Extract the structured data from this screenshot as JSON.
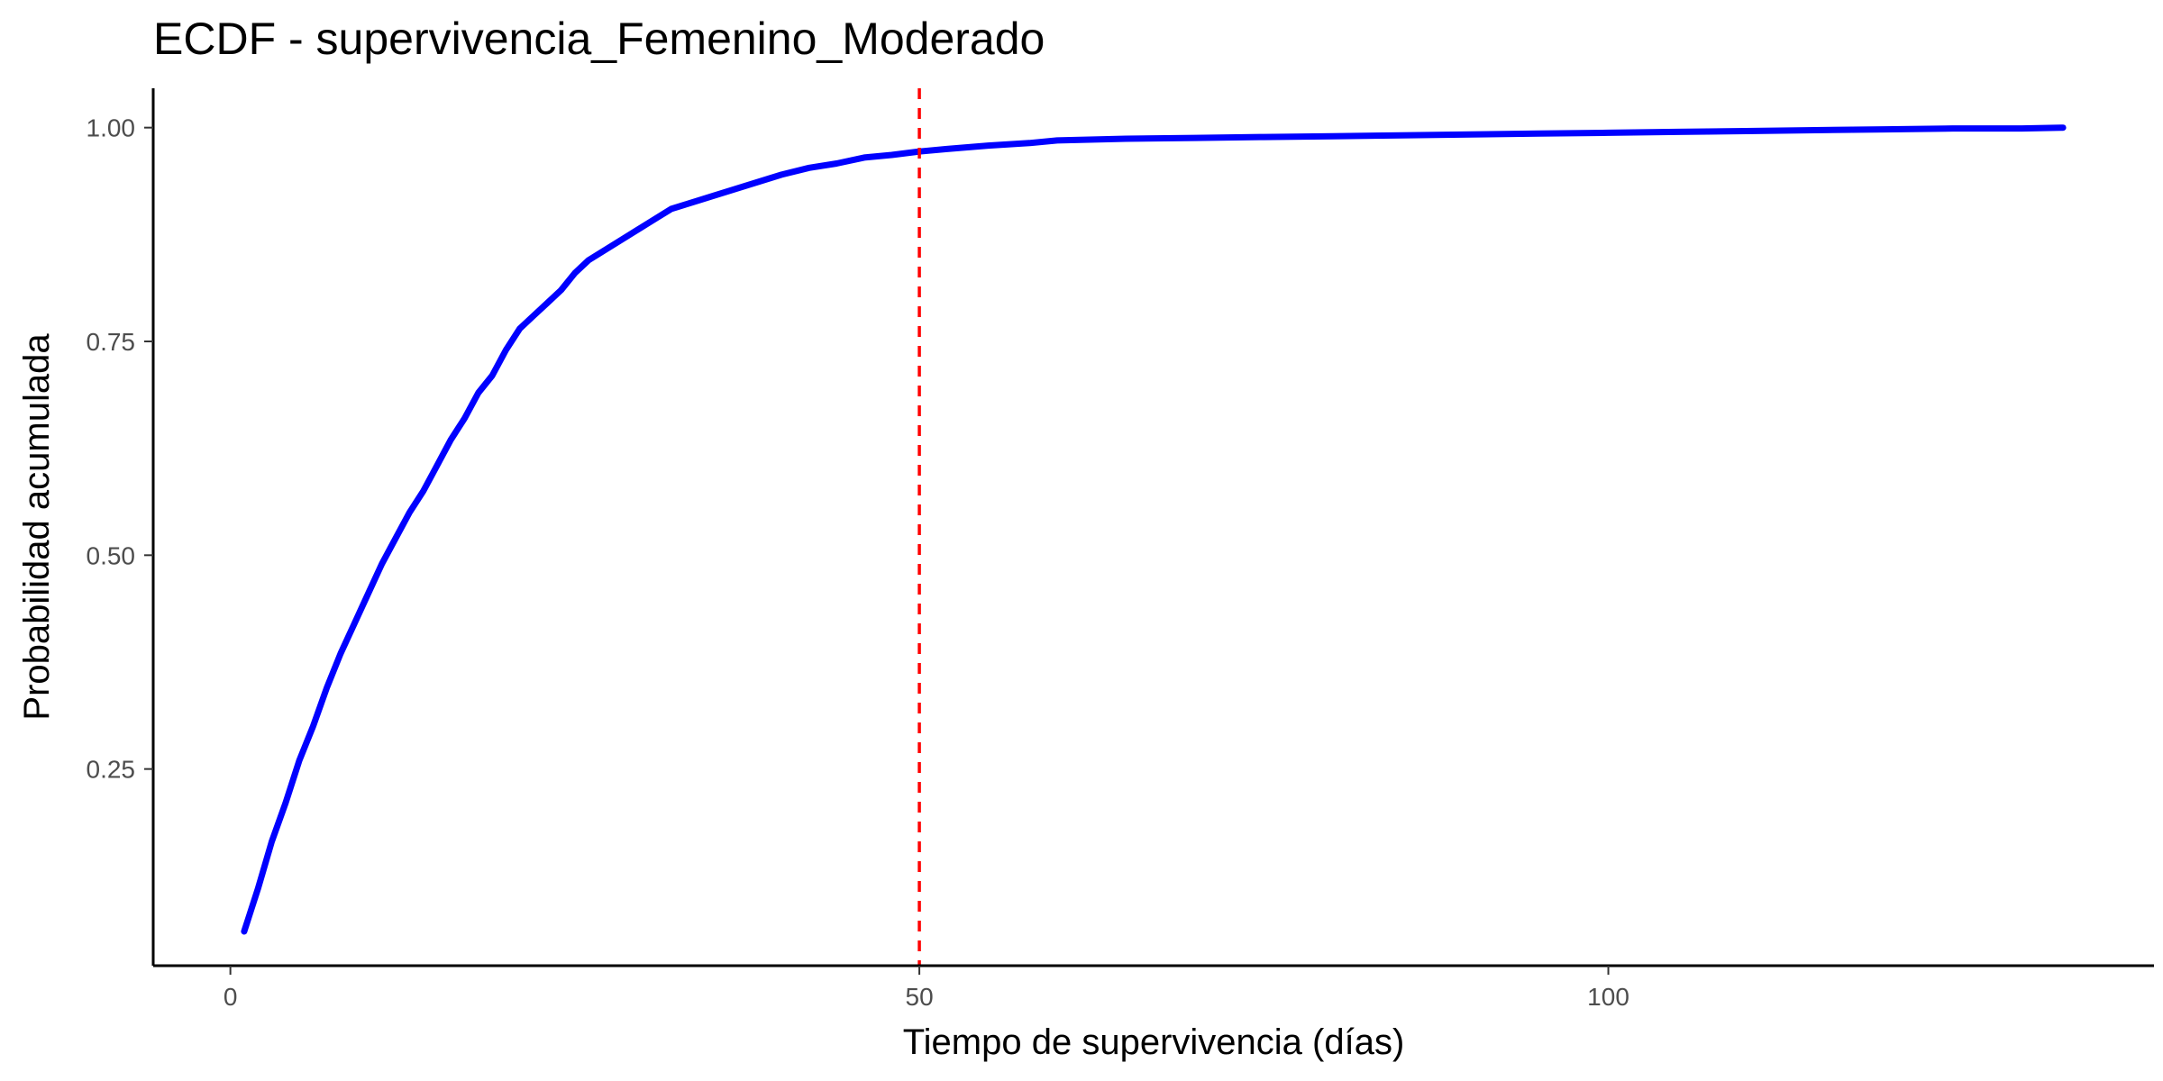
{
  "chart_data": {
    "type": "line",
    "title": "ECDF - supervivencia_Femenino_Moderado",
    "xlabel": "Tiempo de supervivencia (días)",
    "ylabel": "Probabilidad acumulada",
    "xlim": [
      -5.6,
      139.6
    ],
    "ylim": [
      0.02,
      1.046
    ],
    "x_ticks": [
      0,
      50,
      100
    ],
    "x_tick_labels": [
      "0",
      "50",
      "100"
    ],
    "y_ticks": [
      0.25,
      0.5,
      0.75,
      1.0
    ],
    "y_tick_labels": [
      "0.25",
      "0.50",
      "0.75",
      "1.00"
    ],
    "grid": false,
    "series": [
      {
        "color": "#0000ff",
        "x": [
          1,
          2,
          3,
          4,
          5,
          6,
          7,
          8,
          9,
          10,
          11,
          12,
          13,
          14,
          15,
          16,
          17,
          18,
          19,
          20,
          21,
          22,
          23,
          24,
          25,
          26,
          27,
          28,
          29,
          30,
          31,
          32,
          33,
          34,
          35,
          36,
          37,
          38,
          39,
          40,
          42,
          44,
          46,
          48,
          50,
          52,
          55,
          58,
          60,
          65,
          70,
          75,
          80,
          85,
          90,
          95,
          100,
          105,
          110,
          115,
          120,
          125,
          130,
          133
        ],
        "y": [
          0.06,
          0.11,
          0.165,
          0.21,
          0.26,
          0.3,
          0.345,
          0.385,
          0.42,
          0.455,
          0.49,
          0.52,
          0.55,
          0.575,
          0.605,
          0.635,
          0.66,
          0.69,
          0.71,
          0.74,
          0.765,
          0.78,
          0.795,
          0.81,
          0.83,
          0.845,
          0.855,
          0.865,
          0.875,
          0.885,
          0.895,
          0.905,
          0.91,
          0.915,
          0.92,
          0.925,
          0.93,
          0.935,
          0.94,
          0.945,
          0.953,
          0.958,
          0.965,
          0.968,
          0.972,
          0.975,
          0.979,
          0.982,
          0.985,
          0.987,
          0.988,
          0.989,
          0.99,
          0.991,
          0.992,
          0.993,
          0.994,
          0.995,
          0.996,
          0.997,
          0.998,
          0.999,
          0.999,
          1.0
        ]
      }
    ],
    "reference_line": {
      "type": "vertical",
      "x": 50,
      "color": "#ff0000",
      "style": "dashed"
    }
  }
}
